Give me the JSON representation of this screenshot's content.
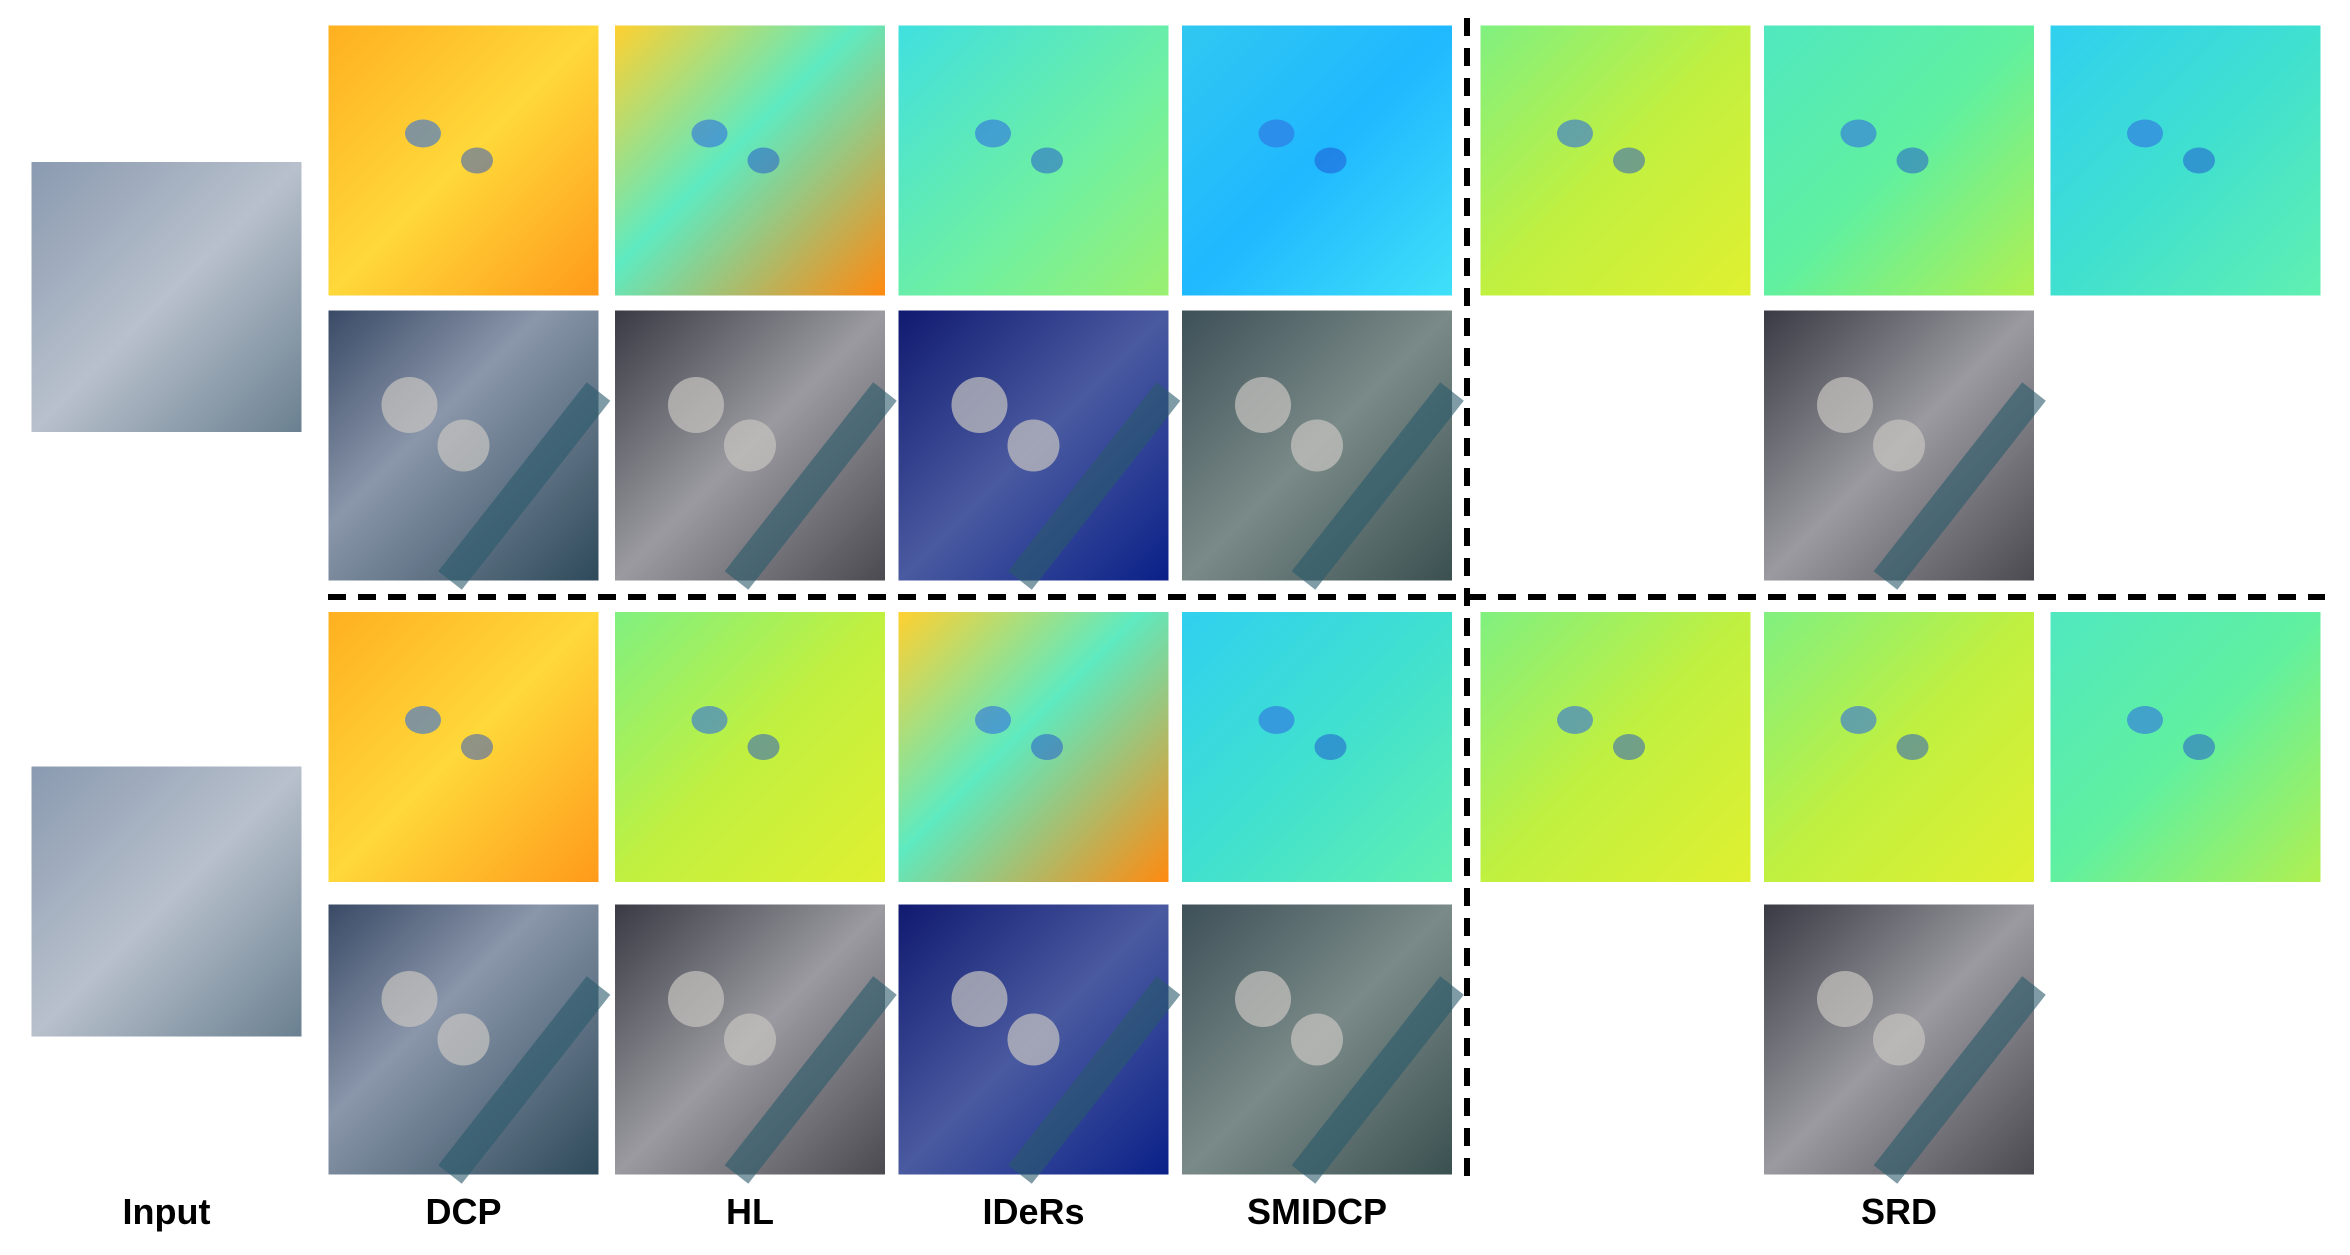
{
  "column_labels": [
    "Input",
    "DCP",
    "HL",
    "IDeRs",
    "SMIDCP",
    "SRD"
  ]
}
